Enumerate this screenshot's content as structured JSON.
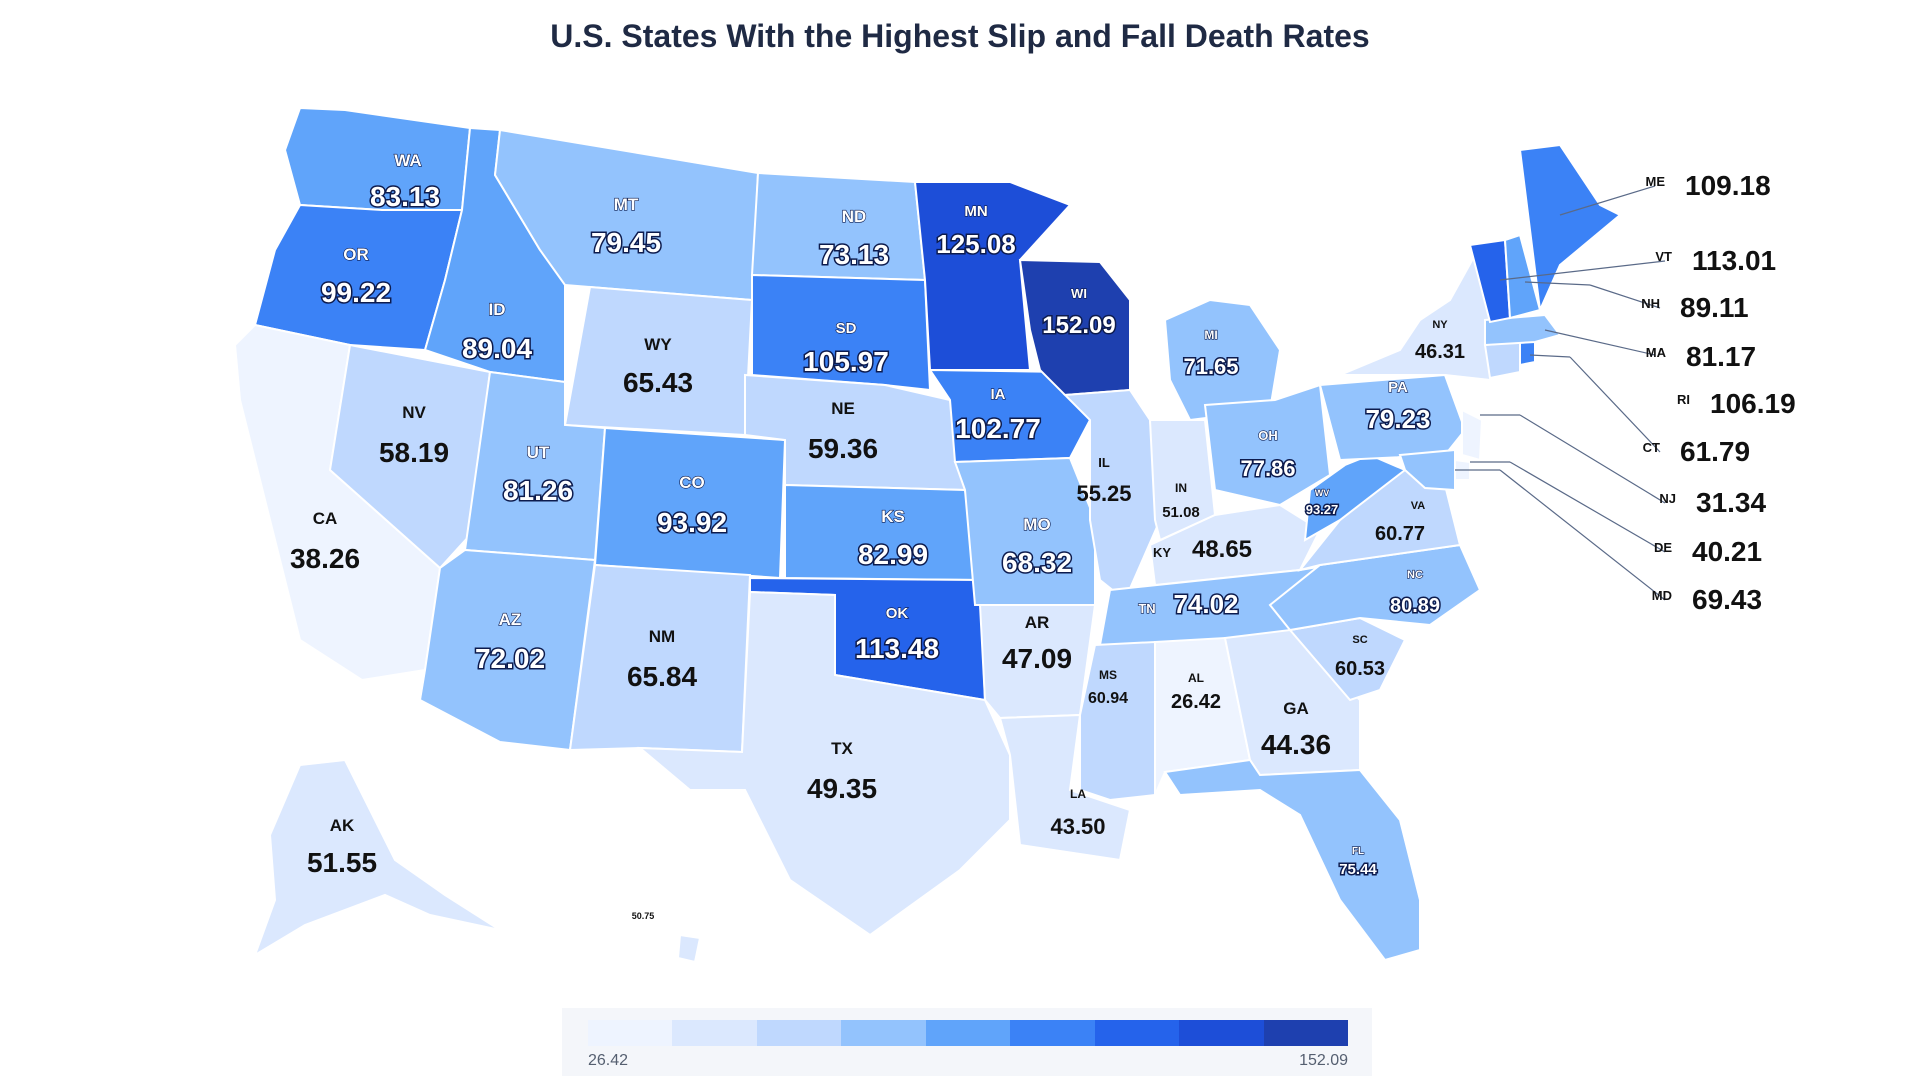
{
  "title": "U.S. States With the Highest Slip and Fall Death Rates",
  "legend": {
    "min_label": "26.42",
    "max_label": "152.09",
    "colors": [
      "#eef4ff",
      "#dbe8fe",
      "#bfd8fe",
      "#93c3fd",
      "#60a4fa",
      "#3b82f6",
      "#2563eb",
      "#1d4ed8",
      "#1e40af"
    ]
  },
  "states": {
    "WA": {
      "abbr": "WA",
      "value": "83.13"
    },
    "OR": {
      "abbr": "OR",
      "value": "99.22"
    },
    "CA": {
      "abbr": "CA",
      "value": "38.26"
    },
    "NV": {
      "abbr": "NV",
      "value": "58.19"
    },
    "ID": {
      "abbr": "ID",
      "value": "89.04"
    },
    "MT": {
      "abbr": "MT",
      "value": "79.45"
    },
    "WY": {
      "abbr": "WY",
      "value": "65.43"
    },
    "UT": {
      "abbr": "UT",
      "value": "81.26"
    },
    "AZ": {
      "abbr": "AZ",
      "value": "72.02"
    },
    "CO": {
      "abbr": "CO",
      "value": "93.92"
    },
    "NM": {
      "abbr": "NM",
      "value": "65.84"
    },
    "ND": {
      "abbr": "ND",
      "value": "73.13"
    },
    "SD": {
      "abbr": "SD",
      "value": "105.97"
    },
    "NE": {
      "abbr": "NE",
      "value": "59.36"
    },
    "KS": {
      "abbr": "KS",
      "value": "82.99"
    },
    "OK": {
      "abbr": "OK",
      "value": "113.48"
    },
    "TX": {
      "abbr": "TX",
      "value": "49.35"
    },
    "MN": {
      "abbr": "MN",
      "value": "125.08"
    },
    "IA": {
      "abbr": "IA",
      "value": "102.77"
    },
    "MO": {
      "abbr": "MO",
      "value": "68.32"
    },
    "AR": {
      "abbr": "AR",
      "value": "47.09"
    },
    "LA": {
      "abbr": "LA",
      "value": "43.50"
    },
    "WI": {
      "abbr": "WI",
      "value": "152.09"
    },
    "IL": {
      "abbr": "IL",
      "value": "55.25"
    },
    "MI": {
      "abbr": "MI",
      "value": "71.65"
    },
    "IN": {
      "abbr": "IN",
      "value": "51.08"
    },
    "OH": {
      "abbr": "OH",
      "value": "77.86"
    },
    "KY": {
      "abbr": "KY",
      "value": "48.65"
    },
    "TN": {
      "abbr": "TN",
      "value": "74.02"
    },
    "MS": {
      "abbr": "MS",
      "value": "60.94"
    },
    "AL": {
      "abbr": "AL",
      "value": "26.42"
    },
    "GA": {
      "abbr": "GA",
      "value": "44.36"
    },
    "FL": {
      "abbr": "FL",
      "value": "75.44"
    },
    "SC": {
      "abbr": "SC",
      "value": "60.53"
    },
    "NC": {
      "abbr": "NC",
      "value": "80.89"
    },
    "VA": {
      "abbr": "VA",
      "value": "60.77"
    },
    "WV": {
      "abbr": "WV",
      "value": "93.27"
    },
    "PA": {
      "abbr": "PA",
      "value": "79.23"
    },
    "NY": {
      "abbr": "NY",
      "value": "46.31"
    },
    "ME": {
      "abbr": "ME",
      "value": "109.18"
    },
    "VT": {
      "abbr": "VT",
      "value": "113.01"
    },
    "NH": {
      "abbr": "NH",
      "value": "89.11"
    },
    "MA": {
      "abbr": "MA",
      "value": "81.17"
    },
    "RI": {
      "abbr": "RI",
      "value": "106.19"
    },
    "CT": {
      "abbr": "CT",
      "value": "61.79"
    },
    "NJ": {
      "abbr": "NJ",
      "value": "31.34"
    },
    "DE": {
      "abbr": "DE",
      "value": "40.21"
    },
    "MD": {
      "abbr": "MD",
      "value": "69.43"
    },
    "AK": {
      "abbr": "AK",
      "value": "51.55"
    },
    "HI": {
      "abbr": "",
      "value": "50.75"
    }
  }
}
